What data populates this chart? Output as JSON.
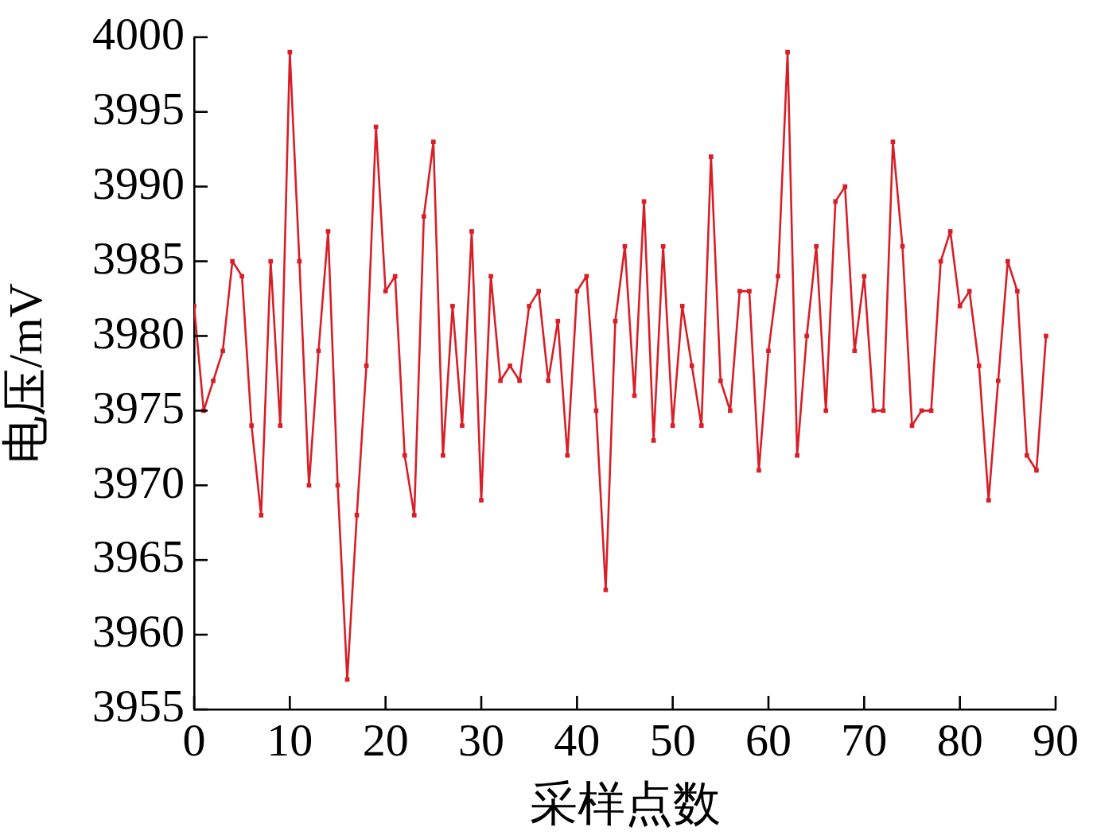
{
  "chart_data": {
    "type": "line",
    "xlabel": "采样点数",
    "ylabel": "电压/mV",
    "x": [
      0,
      1,
      2,
      3,
      4,
      5,
      6,
      7,
      8,
      9,
      10,
      11,
      12,
      13,
      14,
      15,
      16,
      17,
      18,
      19,
      20,
      21,
      22,
      23,
      24,
      25,
      26,
      27,
      28,
      29,
      30,
      31,
      32,
      33,
      34,
      35,
      36,
      37,
      38,
      39,
      40,
      41,
      42,
      43,
      44,
      45,
      46,
      47,
      48,
      49,
      50,
      51,
      52,
      53,
      54,
      55,
      56,
      57,
      58,
      59,
      60,
      61,
      62,
      63,
      64,
      65,
      66,
      67,
      68,
      69,
      70,
      71,
      72,
      73,
      74,
      75,
      76,
      77,
      78,
      79,
      80,
      81,
      82,
      83,
      84,
      85,
      86,
      87,
      88,
      89
    ],
    "series": [
      {
        "color": "#d81e27",
        "values": [
          3982,
          3975,
          3977,
          3979,
          3985,
          3984,
          3974,
          3968,
          3985,
          3974,
          3999,
          3985,
          3970,
          3979,
          3987,
          3970,
          3957,
          3968,
          3978,
          3994,
          3983,
          3984,
          3972,
          3968,
          3988,
          3993,
          3972,
          3982,
          3974,
          3987,
          3969,
          3984,
          3977,
          3978,
          3977,
          3982,
          3983,
          3977,
          3981,
          3972,
          3983,
          3984,
          3975,
          3963,
          3981,
          3986,
          3976,
          3989,
          3973,
          3986,
          3974,
          3982,
          3978,
          3974,
          3992,
          3977,
          3975,
          3983,
          3983,
          3971,
          3979,
          3984,
          3999,
          3972,
          3980,
          3986,
          3975,
          3989,
          3990,
          3979,
          3984,
          3975,
          3975,
          3993,
          3986,
          3974,
          3975,
          3975,
          3985,
          3987,
          3982,
          3983,
          3978,
          3969,
          3977,
          3985,
          3983,
          3972,
          3971,
          3980
        ]
      }
    ],
    "xlim": [
      0,
      90
    ],
    "ylim": [
      3955,
      4000
    ],
    "xticks": [
      0,
      10,
      20,
      30,
      40,
      50,
      60,
      70,
      80,
      90
    ],
    "yticks": [
      3955,
      3960,
      3965,
      3970,
      3975,
      3980,
      3985,
      3990,
      3995,
      4000
    ],
    "marker": "square",
    "line_style": "solid"
  }
}
